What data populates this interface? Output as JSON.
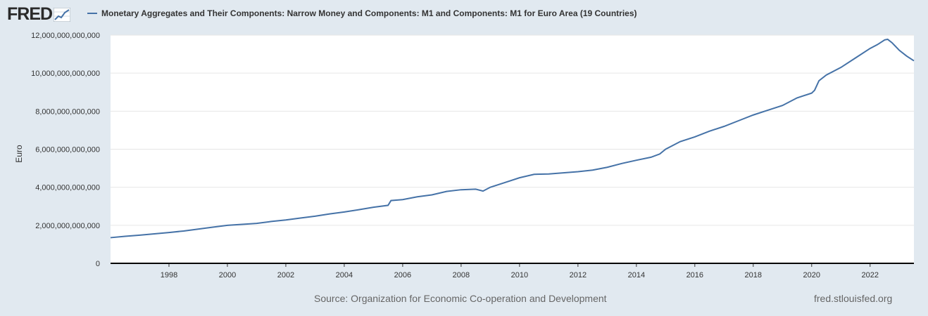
{
  "header": {
    "logo_text": "FRED",
    "legend_label": "Monetary Aggregates and Their Components: Narrow Money and Components: M1 and Components: M1 for Euro Area (19 Countries)"
  },
  "footer": {
    "source": "Source: Organization for Economic Co-operation and Development",
    "site": "fred.stlouisfed.org"
  },
  "colors": {
    "series": "#4572a7",
    "background": "#e1e9f0",
    "plot": "#ffffff"
  },
  "chart_data": {
    "type": "line",
    "title": "Monetary Aggregates and Their Components: Narrow Money and Components: M1 and Components: M1 for Euro Area (19 Countries)",
    "xlabel": "",
    "ylabel": "Euro",
    "xlim": [
      1996.0,
      2023.5
    ],
    "ylim": [
      0,
      12000000000000
    ],
    "yticks": [
      0,
      2000000000000,
      4000000000000,
      6000000000000,
      8000000000000,
      10000000000000,
      12000000000000
    ],
    "ytick_labels": [
      "0",
      "2,000,000,000,000",
      "4,000,000,000,000",
      "6,000,000,000,000",
      "8,000,000,000,000",
      "10,000,000,000,000",
      "12,000,000,000,000"
    ],
    "xticks": [
      1998,
      2000,
      2002,
      2004,
      2006,
      2008,
      2010,
      2012,
      2014,
      2016,
      2018,
      2020,
      2022
    ],
    "xtick_labels": [
      "1998",
      "2000",
      "2002",
      "2004",
      "2006",
      "2008",
      "2010",
      "2012",
      "2014",
      "2016",
      "2018",
      "2020",
      "2022"
    ],
    "grid": true,
    "series": [
      {
        "name": "M1 for Euro Area (19 Countries)",
        "x": [
          1996.0,
          1996.5,
          1997.0,
          1997.5,
          1998.0,
          1998.5,
          1999.0,
          1999.5,
          2000.0,
          2000.5,
          2001.0,
          2001.5,
          2002.0,
          2002.5,
          2003.0,
          2003.5,
          2004.0,
          2004.5,
          2005.0,
          2005.5,
          2005.6,
          2006.0,
          2006.5,
          2007.0,
          2007.5,
          2008.0,
          2008.5,
          2008.75,
          2009.0,
          2009.5,
          2010.0,
          2010.5,
          2011.0,
          2011.5,
          2012.0,
          2012.5,
          2013.0,
          2013.5,
          2014.0,
          2014.5,
          2014.8,
          2015.0,
          2015.5,
          2016.0,
          2016.5,
          2017.0,
          2017.5,
          2018.0,
          2018.5,
          2019.0,
          2019.5,
          2020.0,
          2020.1,
          2020.25,
          2020.5,
          2021.0,
          2021.5,
          2022.0,
          2022.25,
          2022.5,
          2022.6,
          2022.75,
          2023.0,
          2023.25,
          2023.5
        ],
        "values": [
          1350000000000,
          1420000000000,
          1480000000000,
          1550000000000,
          1620000000000,
          1700000000000,
          1800000000000,
          1900000000000,
          2000000000000,
          2050000000000,
          2100000000000,
          2200000000000,
          2280000000000,
          2380000000000,
          2480000000000,
          2600000000000,
          2700000000000,
          2820000000000,
          2950000000000,
          3050000000000,
          3300000000000,
          3350000000000,
          3500000000000,
          3600000000000,
          3780000000000,
          3870000000000,
          3900000000000,
          3800000000000,
          4000000000000,
          4250000000000,
          4500000000000,
          4680000000000,
          4700000000000,
          4760000000000,
          4820000000000,
          4900000000000,
          5050000000000,
          5250000000000,
          5420000000000,
          5580000000000,
          5750000000000,
          6000000000000,
          6400000000000,
          6650000000000,
          6950000000000,
          7200000000000,
          7500000000000,
          7800000000000,
          8050000000000,
          8300000000000,
          8700000000000,
          8950000000000,
          9100000000000,
          9600000000000,
          9900000000000,
          10300000000000,
          10800000000000,
          11300000000000,
          11500000000000,
          11750000000000,
          11780000000000,
          11600000000000,
          11200000000000,
          10900000000000,
          10650000000000
        ]
      }
    ]
  }
}
